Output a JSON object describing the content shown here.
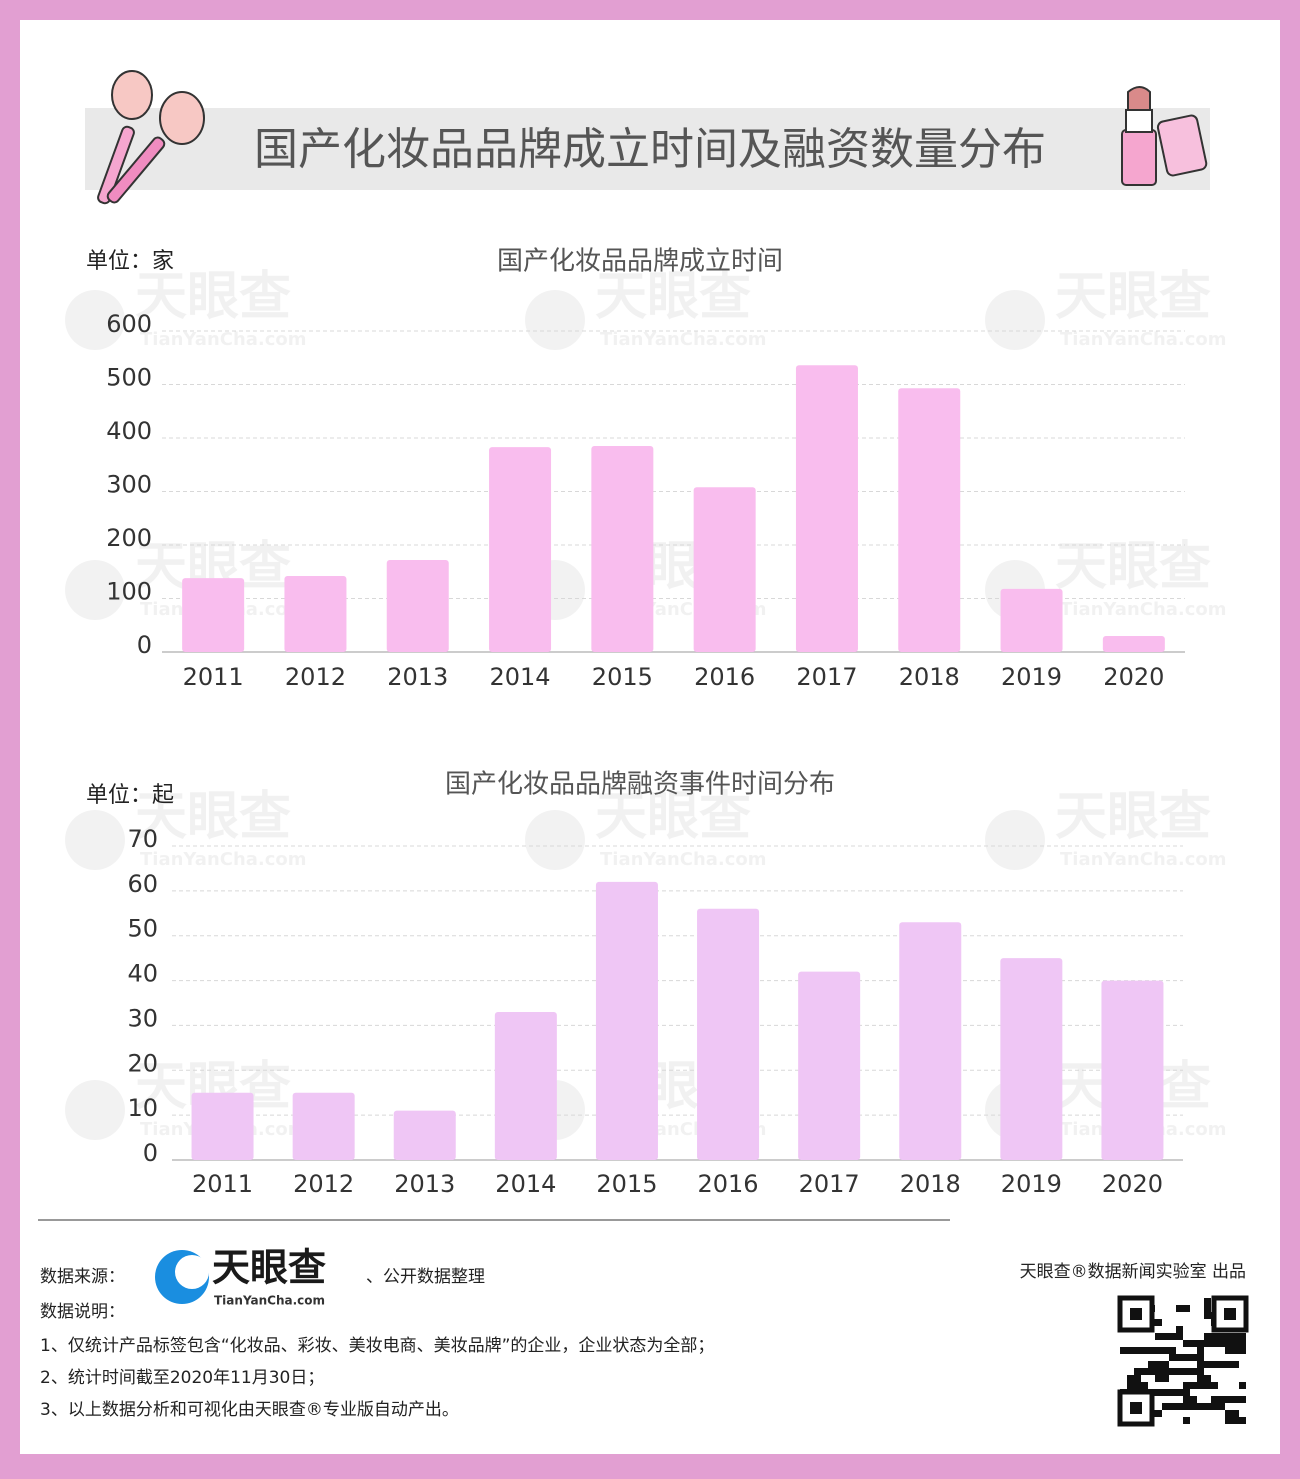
{
  "header": {
    "title": "国产化妆品品牌成立时间及融资数量分布"
  },
  "watermark": {
    "brand": "天眼查",
    "site": "TianYanCha.com"
  },
  "chart_data": [
    {
      "type": "bar",
      "title": "国产化妆品品牌成立时间",
      "unit": "单位：家",
      "categories": [
        "2011",
        "2012",
        "2013",
        "2014",
        "2015",
        "2016",
        "2017",
        "2018",
        "2019",
        "2020"
      ],
      "values": [
        138,
        142,
        172,
        383,
        385,
        308,
        536,
        493,
        118,
        30
      ],
      "color": "#f9bdee",
      "ylim": [
        0,
        600
      ],
      "yticks": [
        0,
        100,
        200,
        300,
        400,
        500,
        600
      ],
      "grid": true
    },
    {
      "type": "bar",
      "title": "国产化妆品品牌融资事件时间分布",
      "unit": "单位：起",
      "categories": [
        "2011",
        "2012",
        "2013",
        "2014",
        "2015",
        "2016",
        "2017",
        "2018",
        "2019",
        "2020"
      ],
      "values": [
        15,
        15,
        11,
        33,
        62,
        56,
        42,
        53,
        45,
        40
      ],
      "color": "#efc6f5",
      "ylim": [
        0,
        70
      ],
      "yticks": [
        0,
        10,
        20,
        30,
        40,
        50,
        60,
        70
      ],
      "grid": true
    }
  ],
  "footer": {
    "source_label": "数据来源：",
    "source_logo": "天眼查",
    "source_logo_site": "TianYanCha.com",
    "source_rest": "、公开数据整理",
    "credit": "天眼查®数据新闻实验室 出品",
    "notes_label": "数据说明：",
    "notes": [
      "1、仅统计产品标签包含“化妆品、彩妆、美妆电商、美妆品牌”的企业，企业状态为全部；",
      "2、统计时间截至2020年11月30日；",
      "3、以上数据分析和可视化由天眼查®专业版自动产出。"
    ]
  }
}
